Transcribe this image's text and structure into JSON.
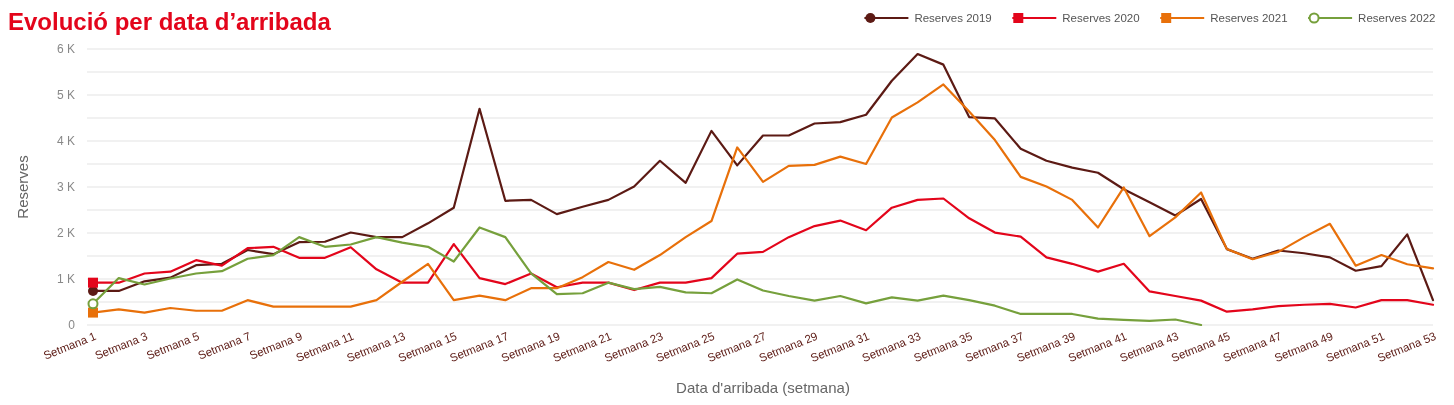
{
  "chart_data": {
    "type": "line",
    "title": "Evolució per data d’arribada",
    "xlabel": "Data d'arribada (setmana)",
    "ylabel": "Reserves",
    "categories": [
      "Setmana 1",
      null,
      "Setmana 3",
      null,
      "Setmana 5",
      null,
      "Setmana 7",
      null,
      "Setmana 9",
      null,
      "Setmana 11",
      null,
      "Setmana 13",
      null,
      "Setmana 15",
      null,
      "Setmana 17",
      null,
      "Setmana 19",
      null,
      "Setmana 21",
      null,
      "Setmana 23",
      null,
      "Setmana 25",
      null,
      "Setmana 27",
      null,
      "Setmana 29",
      null,
      "Setmana 31",
      null,
      "Setmana 33",
      null,
      "Setmana 35",
      null,
      "Setmana 37",
      null,
      "Setmana 39",
      null,
      "Setmana 41",
      null,
      "Setmana 43",
      null,
      "Setmana 45",
      null,
      "Setmana 47",
      null,
      "Setmana 49",
      null,
      "Setmana 51",
      null,
      "Setmana 53"
    ],
    "series": [
      {
        "name": "Reserves 2019",
        "color": "#5c1a14",
        "values": [
          740,
          740,
          950,
          1030,
          1300,
          1330,
          1630,
          1540,
          1800,
          1810,
          2010,
          1910,
          1910,
          2210,
          2550,
          4700,
          2700,
          2720,
          2410,
          2570,
          2720,
          3010,
          3570,
          3090,
          4220,
          3470,
          4120,
          4120,
          4380,
          4410,
          4570,
          5310,
          5890,
          5660,
          4520,
          4490,
          3830,
          3570,
          3420,
          3310,
          2950,
          2670,
          2380,
          2740,
          1650,
          1440,
          1620,
          1560,
          1470,
          1180,
          1280,
          1970,
          540
        ]
      },
      {
        "name": "Reserves 2020",
        "color": "#e3051b",
        "values": [
          920,
          920,
          1120,
          1160,
          1410,
          1290,
          1670,
          1700,
          1460,
          1460,
          1690,
          1210,
          920,
          920,
          1760,
          1020,
          890,
          1120,
          820,
          920,
          920,
          760,
          920,
          920,
          1020,
          1550,
          1590,
          1910,
          2150,
          2270,
          2060,
          2550,
          2720,
          2750,
          2320,
          2010,
          1920,
          1470,
          1330,
          1160,
          1330,
          730,
          630,
          530,
          290,
          340,
          410,
          440,
          460,
          380,
          540,
          540,
          440
        ]
      },
      {
        "name": "Reserves 2021",
        "color": "#e8700a",
        "values": [
          270,
          340,
          270,
          370,
          310,
          310,
          540,
          400,
          400,
          400,
          400,
          540,
          940,
          1330,
          540,
          640,
          540,
          800,
          800,
          1040,
          1370,
          1200,
          1520,
          1910,
          2260,
          3860,
          3110,
          3460,
          3480,
          3660,
          3500,
          4510,
          4840,
          5230,
          4640,
          4020,
          3220,
          3010,
          2720,
          2120,
          2990,
          1930,
          2340,
          2880,
          1650,
          1430,
          1590,
          1910,
          2200,
          1290,
          1520,
          1320,
          1230
        ]
      },
      {
        "name": "Reserves 2022",
        "color": "#76a03c",
        "values": [
          460,
          1020,
          880,
          1010,
          1120,
          1170,
          1440,
          1520,
          1910,
          1700,
          1750,
          1910,
          1790,
          1700,
          1380,
          2120,
          1910,
          1120,
          670,
          690,
          920,
          780,
          830,
          710,
          690,
          990,
          750,
          630,
          530,
          630,
          470,
          600,
          530,
          640,
          540,
          420,
          240,
          240,
          240,
          140,
          110,
          90,
          120,
          0,
          null,
          null,
          null,
          null,
          null,
          null,
          null,
          null,
          null
        ]
      }
    ],
    "ylim": [
      0,
      6000
    ],
    "yticks": [
      0,
      {
        "value": 500,
        "label": null
      },
      {
        "value": 1000,
        "label": "1 K"
      },
      {
        "value": 1500,
        "label": null
      },
      {
        "value": 2000,
        "label": "2 K"
      },
      {
        "value": 2500,
        "label": null
      },
      {
        "value": 3000,
        "label": "3 K"
      },
      {
        "value": 3500,
        "label": null
      },
      {
        "value": 4000,
        "label": "4 K"
      },
      {
        "value": 4500,
        "label": null
      },
      {
        "value": 5000,
        "label": "5 K"
      },
      {
        "value": 5500,
        "label": null
      },
      {
        "value": 6000,
        "label": "6 K"
      }
    ],
    "grid": "y",
    "legend": "top right",
    "line_style": "solid"
  }
}
